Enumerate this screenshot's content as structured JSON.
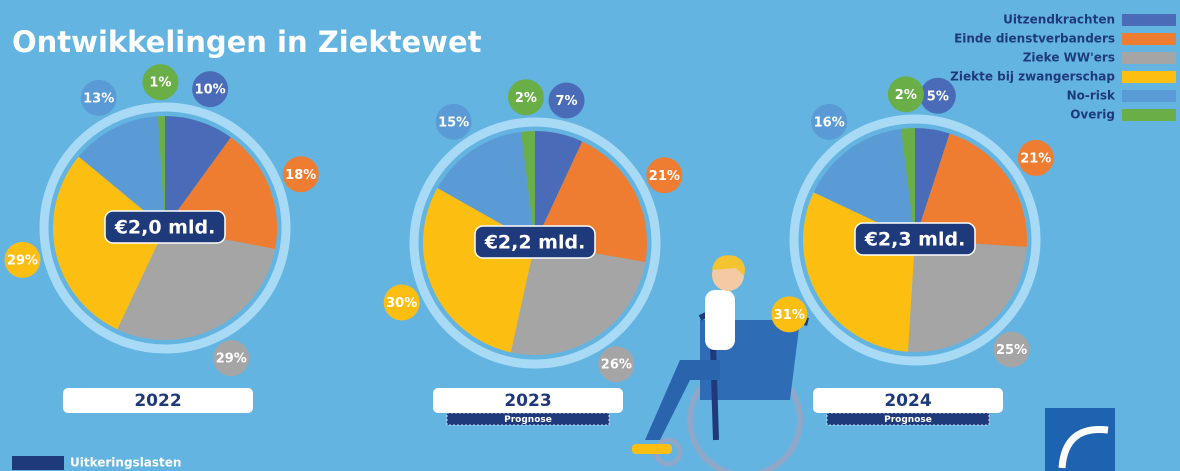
{
  "title": "Ontwikkelingen in Ziektewet",
  "legend": {
    "items": [
      "Uitzendkrachten",
      "Einde dienstverbanders",
      "Zieke WW'ers",
      "Ziekte bij zwangerschap",
      "No-risk",
      "Overig"
    ],
    "colors": [
      "#4a6cb8",
      "#ee7d31",
      "#a5a5a5",
      "#fdbe12",
      "#5b9bd5",
      "#6aae48"
    ]
  },
  "footer": "Uitkeringslasten",
  "chart_data": [
    {
      "type": "pie",
      "label": "2022",
      "center_label": "€2,0 mld.",
      "values": [
        10,
        18,
        29,
        29,
        13,
        1
      ],
      "value_labels": [
        "10%",
        "18%",
        "29%",
        "29%",
        "13%",
        "1%"
      ]
    },
    {
      "type": "pie",
      "label": "2023",
      "note": "Prognose",
      "center_label": "€2,2 mld.",
      "values": [
        7,
        21,
        26,
        30,
        15,
        2
      ],
      "value_labels": [
        "7%",
        "21%",
        "26%",
        "30%",
        "15%",
        "2%"
      ]
    },
    {
      "type": "pie",
      "label": "2024",
      "note": "Prognose",
      "center_label": "€2,3 mld.",
      "values": [
        5,
        21,
        25,
        31,
        16,
        2
      ],
      "value_labels": [
        "5%",
        "21%",
        "25%",
        "31%",
        "16%",
        "2%"
      ]
    }
  ]
}
